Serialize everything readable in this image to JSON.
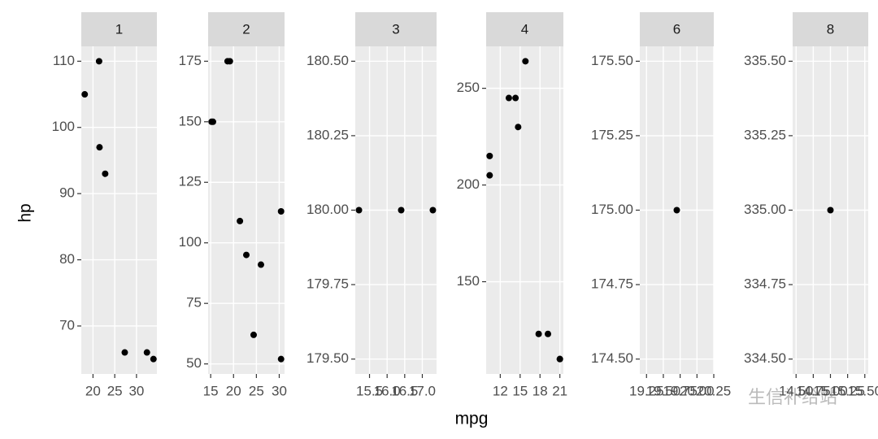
{
  "chart_data": [
    {
      "type": "scatter",
      "title": "1",
      "x": [
        22.8,
        21.4,
        18.1,
        32.4,
        33.9,
        21.5,
        27.3
      ],
      "values": [
        93,
        110,
        105,
        66,
        65,
        97,
        66
      ],
      "xlim": [
        17.31,
        34.69
      ],
      "ylim": [
        62.75,
        112.25
      ],
      "xticks": [
        20,
        25,
        30
      ],
      "yticks": [
        70,
        80,
        90,
        100,
        110
      ],
      "color": "#000000",
      "grid": true
    },
    {
      "type": "scatter",
      "title": "2",
      "x": [
        18.7,
        24.4,
        22.8,
        19.2,
        30.4,
        15.5,
        15.2,
        26.0,
        30.4,
        21.4
      ],
      "values": [
        175,
        62,
        95,
        175,
        52,
        150,
        150,
        91,
        113,
        109
      ],
      "xlim": [
        14.44,
        31.16
      ],
      "ylim": [
        45.85,
        181.15
      ],
      "xticks": [
        15,
        20,
        25,
        30
      ],
      "yticks": [
        50,
        75,
        100,
        125,
        150,
        175
      ],
      "color": "#000000",
      "grid": true
    },
    {
      "type": "scatter",
      "title": "3",
      "x": [
        16.4,
        17.3,
        15.2
      ],
      "values": [
        180,
        180,
        180
      ],
      "xlim": [
        15.095,
        17.405
      ],
      "ylim": [
        179.45,
        180.55
      ],
      "xticks": [
        15.5,
        {
          "value": 16,
          "label": "16.0"
        },
        16.5,
        {
          "value": 17,
          "label": "17.0"
        }
      ],
      "yticks": [
        {
          "value": 179.5,
          "label": "179.50"
        },
        {
          "value": 179.75,
          "label": "179.75"
        },
        {
          "value": 180,
          "label": "180.00"
        },
        {
          "value": 180.25,
          "label": "180.25"
        },
        {
          "value": 180.5,
          "label": "180.50"
        }
      ],
      "color": "#000000",
      "grid": true
    },
    {
      "type": "scatter",
      "title": "4",
      "x": [
        21.0,
        21.0,
        14.3,
        19.2,
        17.8,
        10.4,
        10.4,
        14.7,
        13.3,
        15.8
      ],
      "values": [
        110,
        110,
        245,
        123,
        123,
        205,
        215,
        230,
        245,
        264
      ],
      "xlim": [
        9.87,
        21.53
      ],
      "ylim": [
        102.3,
        271.7
      ],
      "xticks": [
        12,
        15,
        18,
        21
      ],
      "yticks": [
        150,
        200,
        250
      ],
      "color": "#000000",
      "grid": true
    },
    {
      "type": "scatter",
      "title": "6",
      "x": [
        19.7
      ],
      "values": [
        175
      ],
      "xlim": [
        19.15,
        20.25
      ],
      "ylim": [
        174.45,
        175.55
      ],
      "xticks": [
        19.25,
        {
          "value": 19.5,
          "label": "19.50"
        },
        19.75,
        {
          "value": 20,
          "label": "20.00"
        },
        20.25
      ],
      "yticks": [
        {
          "value": 174.5,
          "label": "174.50"
        },
        174.75,
        {
          "value": 175,
          "label": "175.00"
        },
        175.25,
        {
          "value": 175.5,
          "label": "175.50"
        }
      ],
      "color": "#000000",
      "grid": true
    },
    {
      "type": "scatter",
      "title": "8",
      "x": [
        15.0
      ],
      "values": [
        335
      ],
      "xlim": [
        14.45,
        15.55
      ],
      "ylim": [
        334.45,
        335.55
      ],
      "xticks": [
        {
          "value": 14.5,
          "label": "14.50"
        },
        14.75,
        {
          "value": 15,
          "label": "15.00"
        },
        15.25,
        {
          "value": 15.5,
          "label": "15.50"
        }
      ],
      "yticks": [
        {
          "value": 334.5,
          "label": "334.50"
        },
        334.75,
        {
          "value": 335,
          "label": "335.00"
        },
        335.25,
        {
          "value": 335.5,
          "label": "335.50"
        }
      ],
      "color": "#000000",
      "grid": true
    }
  ],
  "axis_labels": {
    "x": "mpg",
    "y": "hp"
  },
  "watermark": "生信补给站"
}
